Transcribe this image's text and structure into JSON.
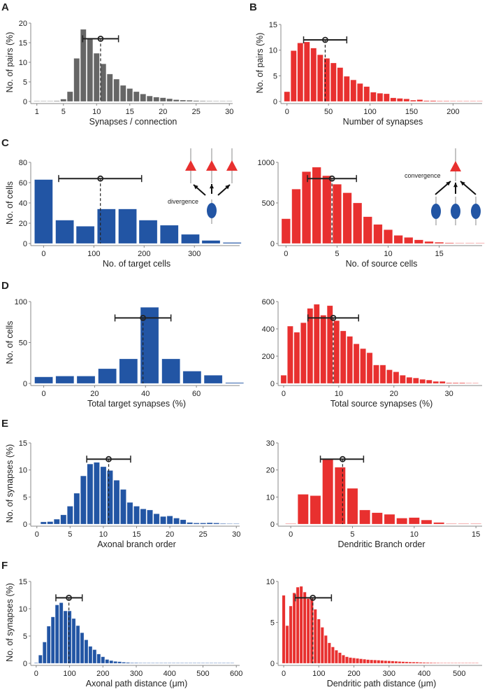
{
  "panel_letters": [
    "A",
    "B",
    "C",
    "D",
    "E",
    "F"
  ],
  "colors": {
    "gray": "#666666",
    "red": "#e8302f",
    "blue": "#2255a4",
    "axis": "#888888",
    "errorbar": "#222222"
  },
  "chart_data": [
    {
      "id": "A",
      "type": "bar",
      "color": "gray",
      "xlabel": "Synapses / connection",
      "ylabel": "No. of pairs (%)",
      "xlim": [
        0.5,
        30.5
      ],
      "ylim": [
        0,
        20
      ],
      "xticks": [
        1,
        5,
        10,
        15,
        20,
        25,
        30
      ],
      "yticks": [
        0,
        5,
        10,
        15,
        20
      ],
      "x": [
        1,
        2,
        3,
        4,
        5,
        6,
        7,
        8,
        9,
        10,
        11,
        12,
        13,
        14,
        15,
        16,
        17,
        18,
        19,
        20,
        21,
        22,
        23,
        24,
        25,
        26,
        27,
        28,
        29,
        30
      ],
      "values": [
        0.05,
        0.05,
        0.1,
        0.15,
        0.6,
        2.5,
        11,
        18.4,
        16,
        12.3,
        9.6,
        7,
        5.7,
        4.1,
        3.3,
        2.5,
        1.9,
        1.4,
        1.1,
        0.95,
        0.7,
        0.45,
        0.35,
        0.3,
        0.2,
        0.15,
        0.12,
        0.1,
        0.08,
        0.06
      ],
      "errorbar": {
        "mean": 10.6,
        "low": 7.9,
        "high": 13.3,
        "y": 16
      }
    },
    {
      "id": "B",
      "type": "bar",
      "color": "red",
      "xlabel": "Number of synapses",
      "ylabel": "No. of pairs (%)",
      "xlim": [
        -4,
        235
      ],
      "ylim": [
        0,
        15
      ],
      "xticks": [
        0,
        50,
        100,
        150,
        200
      ],
      "yticks": [
        0,
        5,
        10,
        15
      ],
      "x": [
        0,
        8,
        16,
        24,
        32,
        40,
        48,
        56,
        64,
        72,
        80,
        88,
        96,
        104,
        112,
        120,
        128,
        136,
        144,
        152,
        160,
        168,
        176,
        184,
        192,
        200,
        208,
        216,
        224,
        232
      ],
      "values": [
        1.9,
        9.9,
        11.4,
        11.6,
        10.4,
        9.1,
        8.4,
        7.5,
        6.6,
        4.9,
        4.2,
        3.5,
        2.9,
        1.8,
        1.6,
        1.5,
        0.7,
        0.6,
        0.5,
        0.25,
        0.35,
        0.15,
        0.15,
        0.1,
        0.1,
        0.08,
        0.06,
        0.05,
        0.04,
        0.03
      ],
      "errorbar": {
        "mean": 46,
        "low": 20,
        "high": 72,
        "y": 12
      }
    },
    {
      "id": "C1",
      "type": "bar",
      "color": "blue",
      "xlabel": "No. of target cells",
      "ylabel": "No. of cells",
      "xlim": [
        -20,
        390
      ],
      "ylim": [
        0,
        80
      ],
      "xticks": [
        0,
        100,
        200,
        300
      ],
      "yticks": [
        0,
        20,
        40,
        60,
        80
      ],
      "x": [
        0,
        42,
        83,
        125,
        167,
        208,
        250,
        292,
        333,
        375
      ],
      "values": [
        63,
        23,
        17,
        34,
        34,
        23,
        18,
        9,
        3,
        1
      ],
      "errorbar": {
        "mean": 113,
        "low": 30,
        "high": 195,
        "y": 64
      },
      "annotation": "divergence"
    },
    {
      "id": "C2",
      "type": "bar",
      "color": "red",
      "xlabel": "No. of source cells",
      "ylabel": "",
      "xlim": [
        -0.5,
        19.2
      ],
      "ylim": [
        0,
        1000
      ],
      "xticks": [
        0,
        5,
        10,
        15
      ],
      "yticks": [
        0,
        500,
        1000
      ],
      "x": [
        0,
        1,
        2,
        3,
        4,
        5,
        6,
        7,
        8,
        9,
        10,
        11,
        12,
        13,
        14,
        15,
        16,
        17,
        18,
        19
      ],
      "values": [
        305,
        670,
        885,
        940,
        835,
        730,
        625,
        500,
        330,
        235,
        170,
        100,
        75,
        45,
        25,
        15,
        8,
        5,
        3,
        2
      ],
      "errorbar": {
        "mean": 4.5,
        "low": 2.1,
        "high": 6.9,
        "y": 800
      },
      "annotation": "convergence"
    },
    {
      "id": "D1",
      "type": "bar",
      "color": "blue",
      "xlabel": "Total target synapses (%)",
      "ylabel": "No. of cells",
      "xlim": [
        -4,
        77
      ],
      "ylim": [
        0,
        100
      ],
      "xticks": [
        0,
        20,
        40,
        60
      ],
      "yticks": [
        0,
        50,
        100
      ],
      "x": [
        0,
        8.3,
        16.6,
        25,
        33.3,
        41.6,
        50,
        58.3,
        66.6,
        75
      ],
      "values": [
        8,
        9,
        9,
        18,
        30,
        93,
        30,
        15,
        10,
        1
      ],
      "errorbar": {
        "mean": 39,
        "low": 28,
        "high": 50,
        "y": 80
      }
    },
    {
      "id": "D2",
      "type": "bar",
      "color": "red",
      "xlabel": "Total source synapses (%)",
      "ylabel": "",
      "xlim": [
        -0.5,
        36
      ],
      "ylim": [
        0,
        600
      ],
      "xticks": [
        0,
        10,
        20,
        30
      ],
      "yticks": [
        0,
        200,
        400,
        600
      ],
      "x": [
        0,
        1.2,
        2.4,
        3.6,
        4.8,
        6,
        7.2,
        8.4,
        9.6,
        10.8,
        12,
        13.2,
        14.4,
        15.6,
        16.8,
        18,
        19.2,
        20.4,
        21.6,
        22.8,
        24,
        25.2,
        26.4,
        27.6,
        28.8,
        30,
        31.2,
        32.4,
        33.6,
        34.8
      ],
      "values": [
        60,
        420,
        375,
        445,
        550,
        580,
        500,
        570,
        460,
        385,
        345,
        290,
        255,
        225,
        135,
        135,
        100,
        85,
        60,
        45,
        40,
        30,
        25,
        15,
        15,
        5,
        5,
        5,
        3,
        2
      ],
      "errorbar": {
        "mean": 9,
        "low": 4.4,
        "high": 13.6,
        "y": 480
      }
    },
    {
      "id": "E1",
      "type": "bar",
      "color": "blue",
      "xlabel": "Axonal branch order",
      "ylabel": "No. of synapses (%)",
      "xlim": [
        -0.5,
        30.5
      ],
      "ylim": [
        0,
        15
      ],
      "xticks": [
        0,
        5,
        10,
        15,
        20,
        25,
        30
      ],
      "yticks": [
        0,
        5,
        10,
        15
      ],
      "x": [
        1,
        2,
        3,
        4,
        5,
        6,
        7,
        8,
        9,
        10,
        11,
        12,
        13,
        14,
        15,
        16,
        17,
        18,
        19,
        20,
        21,
        22,
        23,
        24,
        25,
        26,
        27,
        28,
        29,
        30
      ],
      "values": [
        0.4,
        0.45,
        0.9,
        1.7,
        3.3,
        5.7,
        8.9,
        11.1,
        11.4,
        10.6,
        9.9,
        8.1,
        6.4,
        4.0,
        3.3,
        2.8,
        2.6,
        1.9,
        1.4,
        1.5,
        1.1,
        0.8,
        0.3,
        0.2,
        0.2,
        0.25,
        0.2,
        0.1,
        0.05,
        0.05
      ],
      "errorbar": {
        "mean": 10.8,
        "low": 7.5,
        "high": 14.1,
        "y": 12
      }
    },
    {
      "id": "E2",
      "type": "bar",
      "color": "red",
      "xlabel": "Dendritic Branch order",
      "ylabel": "",
      "xlim": [
        -0.8,
        15.5
      ],
      "ylim": [
        0,
        30
      ],
      "xticks": [
        0,
        5,
        10,
        15
      ],
      "yticks": [
        0,
        10,
        20,
        30
      ],
      "x": [
        0,
        1,
        2,
        3,
        4,
        5,
        6,
        7,
        8,
        9,
        10,
        11,
        12,
        13,
        14,
        15
      ],
      "values": [
        0.1,
        11,
        10.5,
        24,
        21,
        13.2,
        5.2,
        4.2,
        3.6,
        2.2,
        2.4,
        1.5,
        0.6,
        0.15,
        0.1,
        0.05
      ],
      "errorbar": {
        "mean": 4.2,
        "low": 2.4,
        "high": 5.9,
        "y": 24
      }
    },
    {
      "id": "F1",
      "type": "bar",
      "color": "blue",
      "xlabel": "Axonal path distance (μm)",
      "ylabel": "No. of synapses (%)",
      "xlim": [
        -8,
        610
      ],
      "ylim": [
        0,
        15
      ],
      "xticks": [
        0,
        100,
        200,
        300,
        400,
        500,
        600
      ],
      "yticks": [
        0,
        5,
        10,
        15
      ],
      "x": [
        0,
        12.5,
        25,
        37.5,
        50,
        62.5,
        75,
        87.5,
        100,
        112.5,
        125,
        137.5,
        150,
        162.5,
        175,
        187.5,
        200,
        212.5,
        225,
        237.5,
        250,
        262.5,
        275,
        287.5,
        300,
        312.5,
        325,
        337.5,
        350,
        362.5,
        375,
        387.5,
        400,
        412.5,
        425,
        437.5,
        450,
        462.5,
        475,
        487.5,
        500,
        512.5,
        525,
        537.5,
        550,
        562.5,
        575,
        587.5
      ],
      "values": [
        0.1,
        1.5,
        3.9,
        6.8,
        8.5,
        10.7,
        11.1,
        9.6,
        9.6,
        8.2,
        6.9,
        5.6,
        4.3,
        3.1,
        2.5,
        1.7,
        1.2,
        0.7,
        0.5,
        0.35,
        0.3,
        0.2,
        0.15,
        0.1,
        0.1,
        0.08,
        0.06,
        0.05,
        0.04,
        0.03,
        0.03,
        0.02,
        0.02,
        0.02,
        0.02,
        0.01,
        0.01,
        0.01,
        0.01,
        0.01,
        0.01,
        0.01,
        0.01,
        0.01,
        0.01,
        0.01,
        0.01,
        0.01
      ],
      "errorbar": {
        "mean": 98,
        "low": 59,
        "high": 138,
        "y": 12
      }
    },
    {
      "id": "F2",
      "type": "bar",
      "color": "red",
      "xlabel": "Dendritic path distance (μm)",
      "ylabel": "",
      "xlim": [
        -8,
        565
      ],
      "ylim": [
        0,
        10
      ],
      "xticks": [
        0,
        100,
        200,
        300,
        400,
        500
      ],
      "yticks": [
        0,
        5,
        10
      ],
      "x": [
        0,
        10,
        20,
        30,
        40,
        50,
        60,
        70,
        80,
        90,
        100,
        110,
        120,
        130,
        140,
        150,
        160,
        170,
        180,
        190,
        200,
        210,
        220,
        230,
        240,
        250,
        260,
        270,
        280,
        290,
        300,
        310,
        320,
        330,
        340,
        350,
        360,
        370,
        380,
        390,
        400,
        410,
        420,
        430,
        440,
        450,
        460,
        470,
        480,
        490,
        500,
        510,
        520,
        530,
        540,
        550
      ],
      "values": [
        8.3,
        4.6,
        7.0,
        8.6,
        9.3,
        9.4,
        8.7,
        7.9,
        7.9,
        6.6,
        5.4,
        4.4,
        3.4,
        2.5,
        2.0,
        1.6,
        1.3,
        1.0,
        0.8,
        0.7,
        0.65,
        0.6,
        0.55,
        0.5,
        0.45,
        0.42,
        0.4,
        0.38,
        0.35,
        0.32,
        0.3,
        0.28,
        0.25,
        0.22,
        0.2,
        0.18,
        0.16,
        0.15,
        0.14,
        0.12,
        0.1,
        0.09,
        0.08,
        0.07,
        0.06,
        0.05,
        0.05,
        0.04,
        0.04,
        0.03,
        0.03,
        0.03,
        0.02,
        0.02,
        0.02,
        0.02
      ],
      "errorbar": {
        "mean": 83,
        "low": 33,
        "high": 136,
        "y": 8
      }
    }
  ]
}
